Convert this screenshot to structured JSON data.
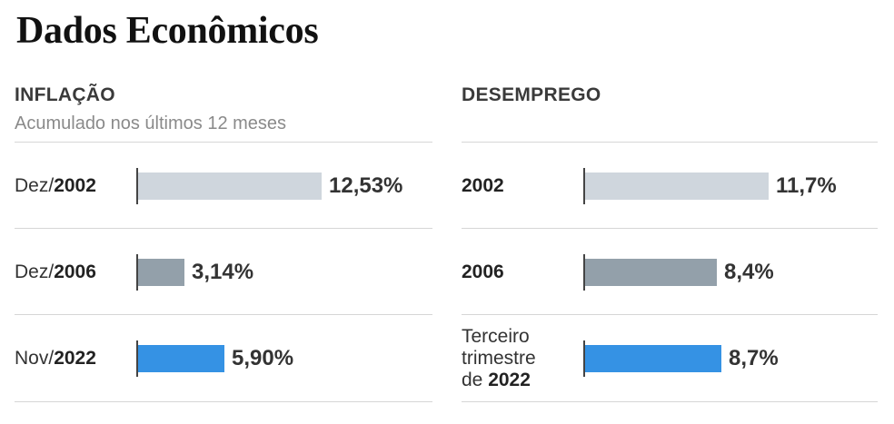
{
  "title": "Dados Econômicos",
  "colors": {
    "gray_light": "#cfd6dd",
    "gray_dark": "#93a0aa",
    "blue": "#3592e4"
  },
  "chart_data": [
    {
      "type": "bar",
      "orientation": "horizontal",
      "title": "INFLAÇÃO",
      "subtitle": "Acumulado nos últimos 12 meses",
      "unit": "%",
      "xlim": [
        0,
        12.53
      ],
      "categories": [
        {
          "prefix": "Dez/",
          "year": "2002"
        },
        {
          "prefix": "Dez/",
          "year": "2006"
        },
        {
          "prefix": "Nov/",
          "year": "2022"
        }
      ],
      "values": [
        12.53,
        3.14,
        5.9
      ],
      "value_labels": [
        "12,53%",
        "3,14%",
        "5,90%"
      ],
      "bar_colors": [
        "gray_light",
        "gray_dark",
        "blue"
      ]
    },
    {
      "type": "bar",
      "orientation": "horizontal",
      "title": "DESEMPREGO",
      "subtitle": "",
      "unit": "%",
      "xlim": [
        0,
        11.7
      ],
      "categories": [
        {
          "prefix": "",
          "year": "2002"
        },
        {
          "prefix": "",
          "year": "2006"
        },
        {
          "prefix": "Terceiro\ntrimestre\nde ",
          "year": "2022"
        }
      ],
      "values": [
        11.7,
        8.4,
        8.7
      ],
      "value_labels": [
        "11,7%",
        "8,4%",
        "8,7%"
      ],
      "bar_colors": [
        "gray_light",
        "gray_dark",
        "blue"
      ]
    }
  ]
}
